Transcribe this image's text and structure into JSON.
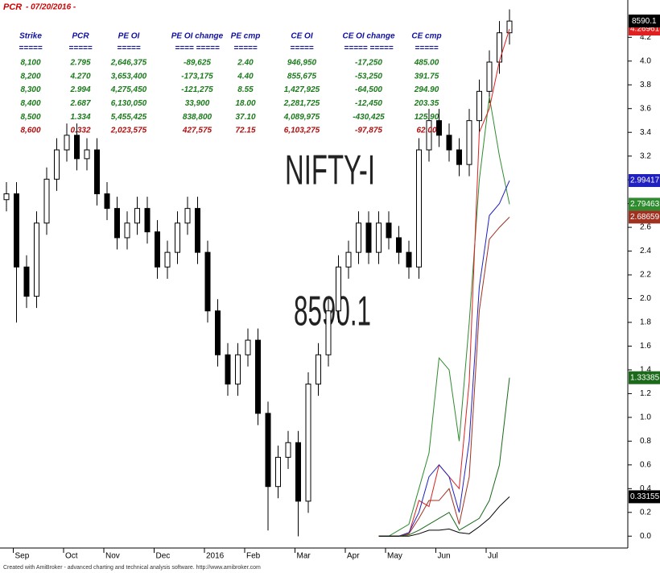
{
  "header": {
    "name": "PCR",
    "date": "- 07/20/2016 -"
  },
  "footer": "Created with AmiBroker - advanced charting and technical analysis software. http://www.amibroker.com",
  "table": {
    "columns": [
      "Strike",
      "PCR",
      "PE OI",
      "PE OI change",
      "PE cmp",
      "CE OI",
      "CE OI change",
      "CE cmp"
    ],
    "separator": [
      "=====",
      "=====",
      "=====",
      "==== =====",
      "=====",
      "=====",
      "===== =====",
      "====="
    ],
    "rows": [
      [
        "8,100",
        "2.795",
        "2,646,375",
        "-89,625",
        "2.40",
        "946,950",
        "-17,250",
        "485.00"
      ],
      [
        "8,200",
        "4.270",
        "3,653,400",
        "-173,175",
        "4.40",
        "855,675",
        "-53,250",
        "391.75"
      ],
      [
        "8,300",
        "2.994",
        "4,275,450",
        "-121,275",
        "8.55",
        "1,427,925",
        "-64,500",
        "294.90"
      ],
      [
        "8,400",
        "2.687",
        "6,130,050",
        "33,900",
        "18.00",
        "2,281,725",
        "-12,450",
        "203.35"
      ],
      [
        "8,500",
        "1.334",
        "5,455,425",
        "838,800",
        "37.10",
        "4,089,975",
        "-430,425",
        "125.90"
      ],
      [
        "8,600",
        "0.332",
        "2,023,575",
        "427,575",
        "72.15",
        "6,103,275",
        "-97,875",
        "62.00"
      ]
    ],
    "row_colors": [
      "#1a7a1a",
      "#1a7a1a",
      "#1a7a1a",
      "#1a7a1a",
      "#1a7a1a",
      "#b01010"
    ]
  },
  "chart_data": {
    "type": "candlestick",
    "title": "NIFTY-I",
    "categories": [
      null,
      "Sep",
      null,
      null,
      null,
      null,
      "Oct",
      null,
      null,
      null,
      "Nov",
      null,
      null,
      null,
      null,
      "Dec",
      null,
      null,
      null,
      null,
      "2016",
      null,
      null,
      null,
      "Feb",
      null,
      null,
      null,
      null,
      "Mar",
      null,
      null,
      null,
      null,
      "Apr",
      null,
      null,
      null,
      "May",
      null,
      null,
      null,
      null,
      "Jun",
      null,
      null,
      null,
      null,
      "Jul",
      null,
      null
    ],
    "open": [
      7980,
      8000,
      7750,
      7650,
      7900,
      8050,
      8150,
      8200,
      8120,
      8150,
      8000,
      7950,
      7850,
      7900,
      7950,
      7870,
      7750,
      7800,
      7900,
      7950,
      7800,
      7600,
      7450,
      7350,
      7450,
      7500,
      7250,
      7000,
      7100,
      7150,
      6950,
      7350,
      7450,
      7600,
      7750,
      7800,
      7900,
      7800,
      7900,
      7850,
      7800,
      7750,
      8150,
      8250,
      8200,
      8150,
      8100,
      8250,
      8350,
      8450,
      8550
    ],
    "high": [
      8040,
      8040,
      7790,
      7940,
      8090,
      8190,
      8240,
      8240,
      8190,
      8190,
      8040,
      7990,
      7940,
      7990,
      7990,
      7910,
      7840,
      7940,
      7990,
      7990,
      7840,
      7640,
      7490,
      7490,
      7540,
      7540,
      7290,
      7140,
      7190,
      7190,
      7390,
      7490,
      7640,
      7790,
      7840,
      7940,
      7940,
      7940,
      7940,
      7890,
      7840,
      8190,
      8290,
      8290,
      8240,
      8190,
      8290,
      8390,
      8490,
      8590,
      8630
    ],
    "low": [
      7940,
      7560,
      7610,
      7610,
      7860,
      8010,
      8110,
      8080,
      8080,
      7960,
      7910,
      7810,
      7810,
      7860,
      7830,
      7710,
      7710,
      7760,
      7860,
      7760,
      7560,
      7410,
      7310,
      7310,
      7410,
      7210,
      6850,
      6960,
      7060,
      6830,
      6910,
      7310,
      7410,
      7560,
      7710,
      7760,
      7760,
      7760,
      7810,
      7760,
      7710,
      7710,
      8110,
      8160,
      8110,
      8060,
      8060,
      8210,
      8310,
      8410,
      8510
    ],
    "close": [
      8000,
      7750,
      7650,
      7900,
      8050,
      8150,
      8200,
      8120,
      8150,
      8000,
      7950,
      7850,
      7900,
      7950,
      7870,
      7750,
      7800,
      7900,
      7950,
      7800,
      7600,
      7450,
      7350,
      7450,
      7500,
      7250,
      7000,
      7100,
      7150,
      6950,
      7350,
      7450,
      7600,
      7750,
      7800,
      7900,
      7800,
      7900,
      7850,
      7800,
      7750,
      8150,
      8250,
      8200,
      8150,
      8100,
      8250,
      8350,
      8450,
      8550,
      8590.1
    ],
    "y2lim": [
      6790,
      8640
    ],
    "ylim": [
      -0.1,
      4.46
    ],
    "yticks": [
      {
        "value": 0,
        "label": "0.0"
      },
      0.2,
      0.4,
      0.6,
      0.8,
      {
        "value": 1,
        "label": "1.0"
      },
      1.2,
      1.4,
      1.6,
      1.8,
      {
        "value": 2,
        "label": "2.0"
      },
      2.2,
      2.4,
      2.6,
      2.8,
      {
        "value": 3,
        "label": "3.0"
      },
      3.2,
      3.4,
      3.6,
      3.8,
      {
        "value": 4,
        "label": "4.0"
      },
      4.2
    ],
    "series": [
      {
        "color": "#2e8b2e",
        "values": [
          null,
          null,
          null,
          null,
          null,
          null,
          null,
          null,
          null,
          null,
          null,
          null,
          null,
          null,
          null,
          null,
          null,
          null,
          null,
          null,
          null,
          null,
          null,
          null,
          null,
          null,
          null,
          null,
          null,
          null,
          null,
          null,
          null,
          null,
          null,
          null,
          null,
          0,
          0,
          0.05,
          0.1,
          0.4,
          0.7,
          1.5,
          1.4,
          0.8,
          1.8,
          3.0,
          3.7,
          3.2,
          2.79463
        ]
      },
      {
        "color": "#e02020",
        "values": [
          null,
          null,
          null,
          null,
          null,
          null,
          null,
          null,
          null,
          null,
          null,
          null,
          null,
          null,
          null,
          null,
          null,
          null,
          null,
          null,
          null,
          null,
          null,
          null,
          null,
          null,
          null,
          null,
          null,
          null,
          null,
          null,
          null,
          null,
          null,
          null,
          null,
          0,
          0,
          0,
          0.02,
          0.3,
          0.25,
          0.6,
          0.5,
          0.4,
          1.3,
          3.4,
          3.6,
          4.0,
          4.26961
        ]
      },
      {
        "color": "#2020c0",
        "values": [
          null,
          null,
          null,
          null,
          null,
          null,
          null,
          null,
          null,
          null,
          null,
          null,
          null,
          null,
          null,
          null,
          null,
          null,
          null,
          null,
          null,
          null,
          null,
          null,
          null,
          null,
          null,
          null,
          null,
          null,
          null,
          null,
          null,
          null,
          null,
          null,
          null,
          0,
          0,
          0,
          0.03,
          0.2,
          0.5,
          0.6,
          0.5,
          0.2,
          0.8,
          2.1,
          2.7,
          2.8,
          2.99417
        ]
      },
      {
        "color": "#a03020",
        "values": [
          null,
          null,
          null,
          null,
          null,
          null,
          null,
          null,
          null,
          null,
          null,
          null,
          null,
          null,
          null,
          null,
          null,
          null,
          null,
          null,
          null,
          null,
          null,
          null,
          null,
          null,
          null,
          null,
          null,
          null,
          null,
          null,
          null,
          null,
          null,
          null,
          null,
          0,
          0,
          0,
          0.02,
          0.15,
          0.3,
          0.3,
          0.4,
          0.1,
          0.5,
          1.9,
          2.5,
          2.6,
          2.68659
        ]
      },
      {
        "color": "#1a6a1a",
        "values": [
          null,
          null,
          null,
          null,
          null,
          null,
          null,
          null,
          null,
          null,
          null,
          null,
          null,
          null,
          null,
          null,
          null,
          null,
          null,
          null,
          null,
          null,
          null,
          null,
          null,
          null,
          null,
          null,
          null,
          null,
          null,
          null,
          null,
          null,
          null,
          null,
          null,
          0,
          0,
          0,
          0.01,
          0.05,
          0.1,
          0.15,
          0.2,
          0.05,
          0.1,
          0.15,
          0.3,
          0.6,
          1.33385
        ]
      },
      {
        "color": "#000000",
        "values": [
          null,
          null,
          null,
          null,
          null,
          null,
          null,
          null,
          null,
          null,
          null,
          null,
          null,
          null,
          null,
          null,
          null,
          null,
          null,
          null,
          null,
          null,
          null,
          null,
          null,
          null,
          null,
          null,
          null,
          null,
          null,
          null,
          null,
          null,
          null,
          null,
          null,
          0,
          0,
          0,
          0,
          0.02,
          0.05,
          0.05,
          0.06,
          0.03,
          0.02,
          0.08,
          0.15,
          0.25,
          0.33155
        ]
      }
    ]
  }
}
